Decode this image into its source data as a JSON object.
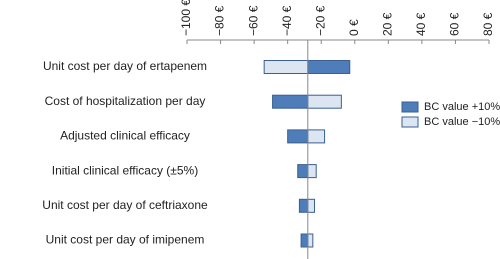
{
  "chart_data": {
    "type": "tornado",
    "categories": [
      "Unit cost per day of ertapenem",
      "Cost of hospitalization per day",
      "Adjusted clinical efficacy",
      "Initial clinical efficacy (±5%)",
      "Unit cost per day of ceftriaxone",
      "Unit cost per day of imipenem"
    ],
    "base_value": -28,
    "series": [
      {
        "name": "BC value +10%",
        "color": "#4f7dba",
        "values": [
          -3,
          -49,
          -40,
          -34,
          -33,
          -32
        ]
      },
      {
        "name": "BC value −10%",
        "color": "#dce5f2",
        "values": [
          -54,
          -8,
          -18,
          -23,
          -24,
          -25
        ]
      }
    ],
    "xlim": [
      -100,
      80
    ],
    "xticks": [
      {
        "value": -100,
        "label": "−100 €"
      },
      {
        "value": -80,
        "label": "−80 €"
      },
      {
        "value": -60,
        "label": "−60 €"
      },
      {
        "value": -40,
        "label": "−40 €"
      },
      {
        "value": -20,
        "label": "−20 €"
      },
      {
        "value": 0,
        "label": "0 €"
      },
      {
        "value": 20,
        "label": "20 €"
      },
      {
        "value": 40,
        "label": "40 €"
      },
      {
        "value": 60,
        "label": "60 €"
      },
      {
        "value": 80,
        "label": "80 €"
      }
    ],
    "legend": "right"
  }
}
